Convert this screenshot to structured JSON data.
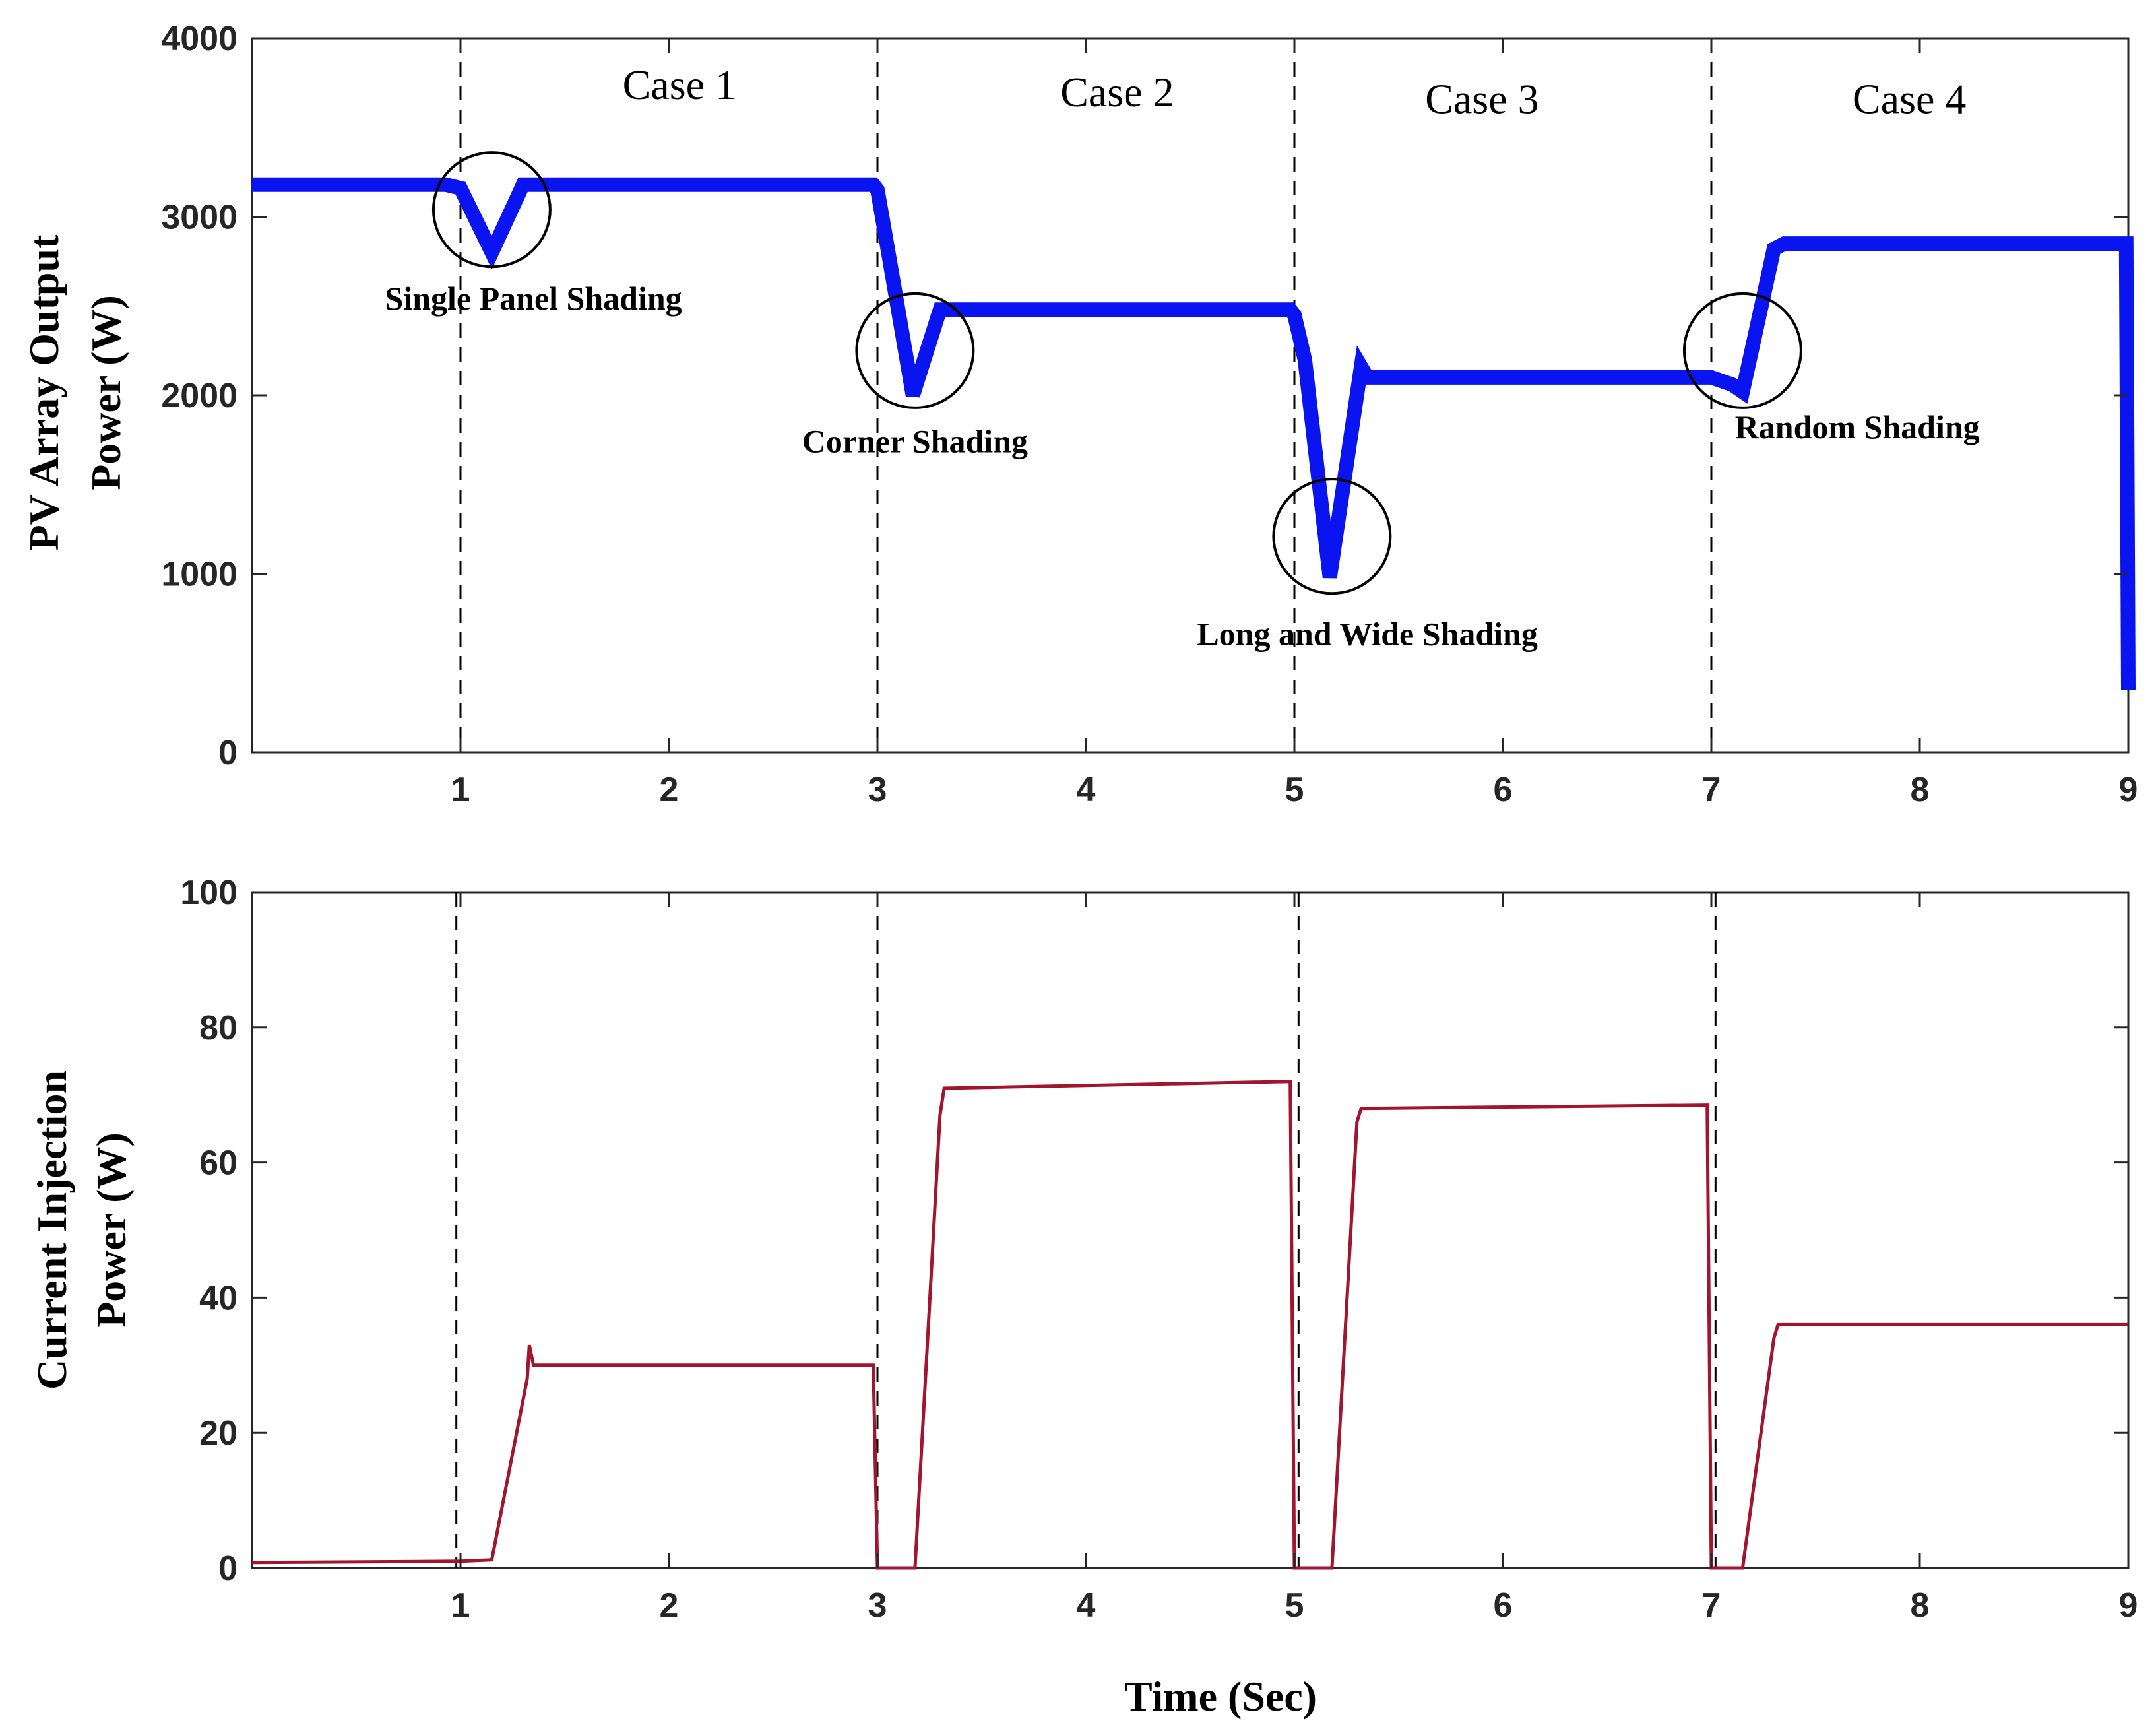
{
  "chart_data": [
    {
      "type": "line",
      "xlabel": "",
      "ylabel_lines": [
        "PV Array Output",
        "Power (W)"
      ],
      "xlim": [
        0,
        9
      ],
      "ylim": [
        0,
        4000
      ],
      "xticks": [
        "1",
        "2",
        "3",
        "4",
        "5",
        "6",
        "7",
        "8",
        "9"
      ],
      "yticks": [
        "0",
        "1000",
        "2000",
        "3000",
        "4000"
      ],
      "series": [
        {
          "name": "PV Array Output Power",
          "color": "#0a14f0",
          "x": [
            0,
            0.93,
            1.0,
            1.15,
            1.3,
            2.98,
            3.0,
            3.03,
            3.17,
            3.3,
            4.98,
            5.0,
            5.05,
            5.17,
            5.32,
            5.35,
            6.98,
            7.0,
            7.1,
            7.15,
            7.3,
            7.35,
            8.99,
            9.0
          ],
          "y": [
            3180,
            3180,
            3160,
            2800,
            3180,
            3180,
            3150,
            2950,
            2000,
            2480,
            2480,
            2450,
            2200,
            980,
            2160,
            2100,
            2100,
            2100,
            2060,
            2020,
            2820,
            2850,
            2850,
            350
          ]
        }
      ],
      "vlines": [
        1,
        3,
        5,
        7
      ],
      "case_labels": [
        {
          "text": "Case 1",
          "x": 2.05,
          "y": 3660
        },
        {
          "text": "Case 2",
          "x": 4.15,
          "y": 3620
        },
        {
          "text": "Case 3",
          "x": 5.9,
          "y": 3580
        },
        {
          "text": "Case 4",
          "x": 7.95,
          "y": 3580
        }
      ],
      "annotations": [
        {
          "text": "Single Panel Shading",
          "cx": 1.15,
          "cy": 3040,
          "rx": 0.28,
          "ry": 320,
          "tx": 1.35,
          "ty": 2480
        },
        {
          "text": "Corner Shading",
          "cx": 3.18,
          "cy": 2250,
          "rx": 0.28,
          "ry": 320,
          "tx": 3.18,
          "ty": 1680
        },
        {
          "text": "Long and Wide Shading",
          "cx": 5.18,
          "cy": 1210,
          "rx": 0.28,
          "ry": 320,
          "tx": 5.35,
          "ty": 600
        },
        {
          "text": "Random Shading",
          "cx": 7.15,
          "cy": 2250,
          "rx": 0.28,
          "ry": 320,
          "tx": 7.7,
          "ty": 1760
        }
      ]
    },
    {
      "type": "line",
      "xlabel": "Time (Sec)",
      "ylabel_lines": [
        "Current Injection",
        "Power (W)"
      ],
      "xlim": [
        0,
        9
      ],
      "ylim": [
        0,
        100
      ],
      "xticks": [
        "1",
        "2",
        "3",
        "4",
        "5",
        "6",
        "7",
        "8",
        "9"
      ],
      "yticks": [
        "0",
        "20",
        "40",
        "60",
        "80",
        "100"
      ],
      "series": [
        {
          "name": "Current Injection Power",
          "color": "#a3142e",
          "x": [
            0,
            1.0,
            1.15,
            1.32,
            1.33,
            1.35,
            2.98,
            3.0,
            3.18,
            3.3,
            3.32,
            4.98,
            5.0,
            5.18,
            5.3,
            5.32,
            6.98,
            7.0,
            7.15,
            7.3,
            7.32,
            9.0
          ],
          "y": [
            0.8,
            1.0,
            1.2,
            28,
            33,
            30,
            30,
            0,
            0,
            67,
            71,
            72,
            0,
            0,
            66,
            68,
            68.5,
            0,
            0,
            34,
            36,
            36
          ]
        }
      ],
      "vlines": [
        0.98,
        3.0,
        5.02,
        7.02
      ]
    }
  ]
}
